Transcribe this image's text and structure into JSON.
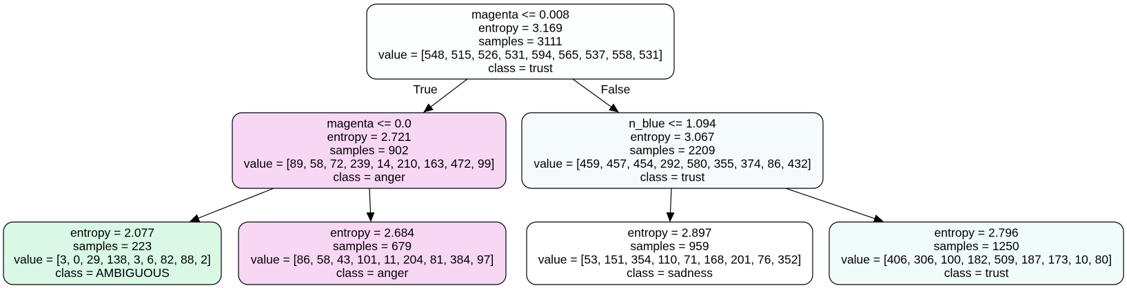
{
  "tree": {
    "nodes": [
      {
        "id": "root",
        "color": "#fdfffe",
        "lines": [
          "magenta <= 0.008",
          "entropy = 3.169",
          "samples = 3111",
          "value = [548, 515, 526, 531, 594, 565, 537, 558, 531]",
          "class = trust"
        ]
      },
      {
        "id": "left",
        "color": "#f8d7f5",
        "lines": [
          "magenta <= 0.0",
          "entropy = 2.721",
          "samples = 902",
          "value = [89, 58, 72, 239, 14, 210, 163, 472, 99]",
          "class = anger"
        ]
      },
      {
        "id": "right",
        "color": "#f5fafd",
        "lines": [
          "n_blue <= 1.094",
          "entropy = 3.067",
          "samples = 2209",
          "value = [459, 457, 454, 292, 580, 355, 374, 86, 432]",
          "class = trust"
        ]
      },
      {
        "id": "leaf1",
        "color": "#d9f8e6",
        "lines": [
          "entropy = 2.077",
          "samples = 223",
          "value = [3, 0, 29, 138, 3, 6, 82, 88, 2]",
          "class = AMBIGUOUS"
        ]
      },
      {
        "id": "leaf2",
        "color": "#f8d7f4",
        "lines": [
          "entropy = 2.684",
          "samples = 679",
          "value = [86, 58, 43, 101, 11, 204, 81, 384, 97]",
          "class = anger"
        ]
      },
      {
        "id": "leaf3",
        "color": "#ffffff",
        "lines": [
          "entropy = 2.897",
          "samples = 959",
          "value = [53, 151, 354, 110, 71, 168, 201, 76, 352]",
          "class = sadness"
        ]
      },
      {
        "id": "leaf4",
        "color": "#f0fcfa",
        "lines": [
          "entropy = 2.796",
          "samples = 1250",
          "value = [406, 306, 100, 182, 509, 187, 173, 10, 80]",
          "class = trust"
        ]
      }
    ],
    "edges": [
      {
        "from": "root",
        "to": "left",
        "label": "True"
      },
      {
        "from": "root",
        "to": "right",
        "label": "False"
      },
      {
        "from": "left",
        "to": "leaf1",
        "label": ""
      },
      {
        "from": "left",
        "to": "leaf2",
        "label": ""
      },
      {
        "from": "right",
        "to": "leaf3",
        "label": ""
      },
      {
        "from": "right",
        "to": "leaf4",
        "label": ""
      }
    ]
  }
}
